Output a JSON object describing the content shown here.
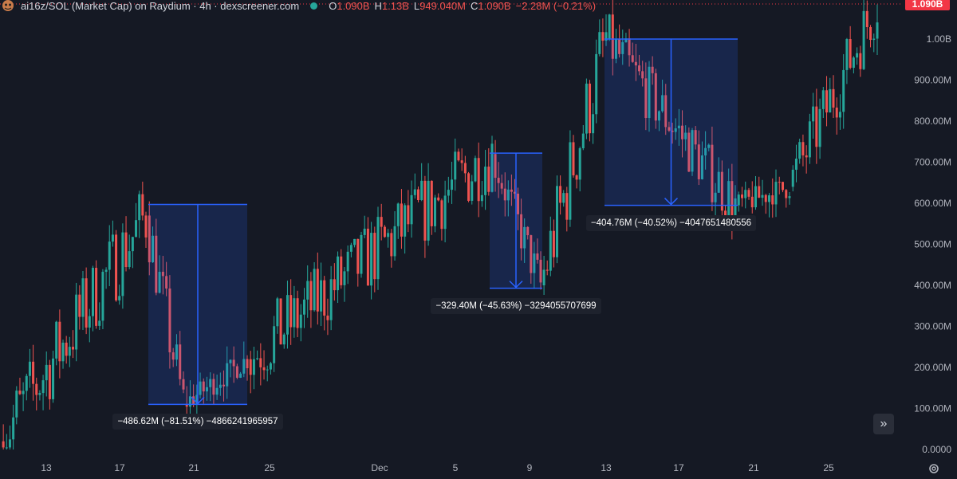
{
  "legend": {
    "title": "ai16z/SOL (Market Cap) on Raydium · 4h · dexscreener.com",
    "o_label": "O",
    "o_value": "1.090B",
    "h_label": "H",
    "h_value": "1.13B",
    "l_label": "L",
    "l_value": "949.040M",
    "c_label": "C",
    "c_value": "1.090B",
    "change": "−2.28M (−0.21%)"
  },
  "last_price_tag": "1.090B",
  "colors": {
    "up": "#26a69a",
    "down": "#ef5350",
    "measure": "#2962ff",
    "background": "#151924"
  },
  "scroll_button_icon": "double-chevron-right-icon",
  "settings_icon": "gear-icon",
  "chart_data": {
    "type": "candlestick",
    "y_ticks": [
      "0.0000",
      "100.00M",
      "200.00M",
      "300.00M",
      "400.00M",
      "500.00M",
      "600.00M",
      "700.00M",
      "800.00M",
      "900.00M",
      "1.00B"
    ],
    "x_ticks": [
      "13",
      "17",
      "21",
      "25",
      "Dec",
      "5",
      "9",
      "13",
      "17",
      "21",
      "25"
    ],
    "ylim": [
      0,
      1100000000
    ],
    "series": [
      {
        "segment": "Nov 12 - Nov 18",
        "from_value": 20000000,
        "to_value": 570000000
      },
      {
        "segment": "Nov 18 - Nov 23",
        "from_value": 570000000,
        "to_value": 110000000
      },
      {
        "segment": "Nov 23 - Nov 28",
        "from_value": 110000000,
        "to_value": 220000000
      },
      {
        "segment": "Nov 28 - Dec 6",
        "from_value": 220000000,
        "to_value": 720000000
      },
      {
        "segment": "Dec 6 - Dec 9",
        "from_value": 720000000,
        "to_value": 400000000
      },
      {
        "segment": "Dec 9 - Dec 13",
        "from_value": 400000000,
        "to_value": 1000000000
      },
      {
        "segment": "Dec 13 - Dec 20",
        "from_value": 1000000000,
        "to_value": 595000000
      },
      {
        "segment": "Dec 20 - Dec 23",
        "from_value": 595000000,
        "to_value": 640000000
      },
      {
        "segment": "Dec 23 - Dec 28",
        "from_value": 640000000,
        "to_value": 1090000000
      }
    ],
    "measurements": [
      {
        "label": "−486.62M (−81.51%) −4866241965957",
        "from_value": 597000000,
        "to_value": 110000000
      },
      {
        "label": "−329.40M (−45.63%) −3294055707699",
        "from_value": 722000000,
        "to_value": 393000000
      },
      {
        "label": "−404.76M (−40.52%) −4047651480556",
        "from_value": 1000000000,
        "to_value": 595000000
      }
    ]
  }
}
